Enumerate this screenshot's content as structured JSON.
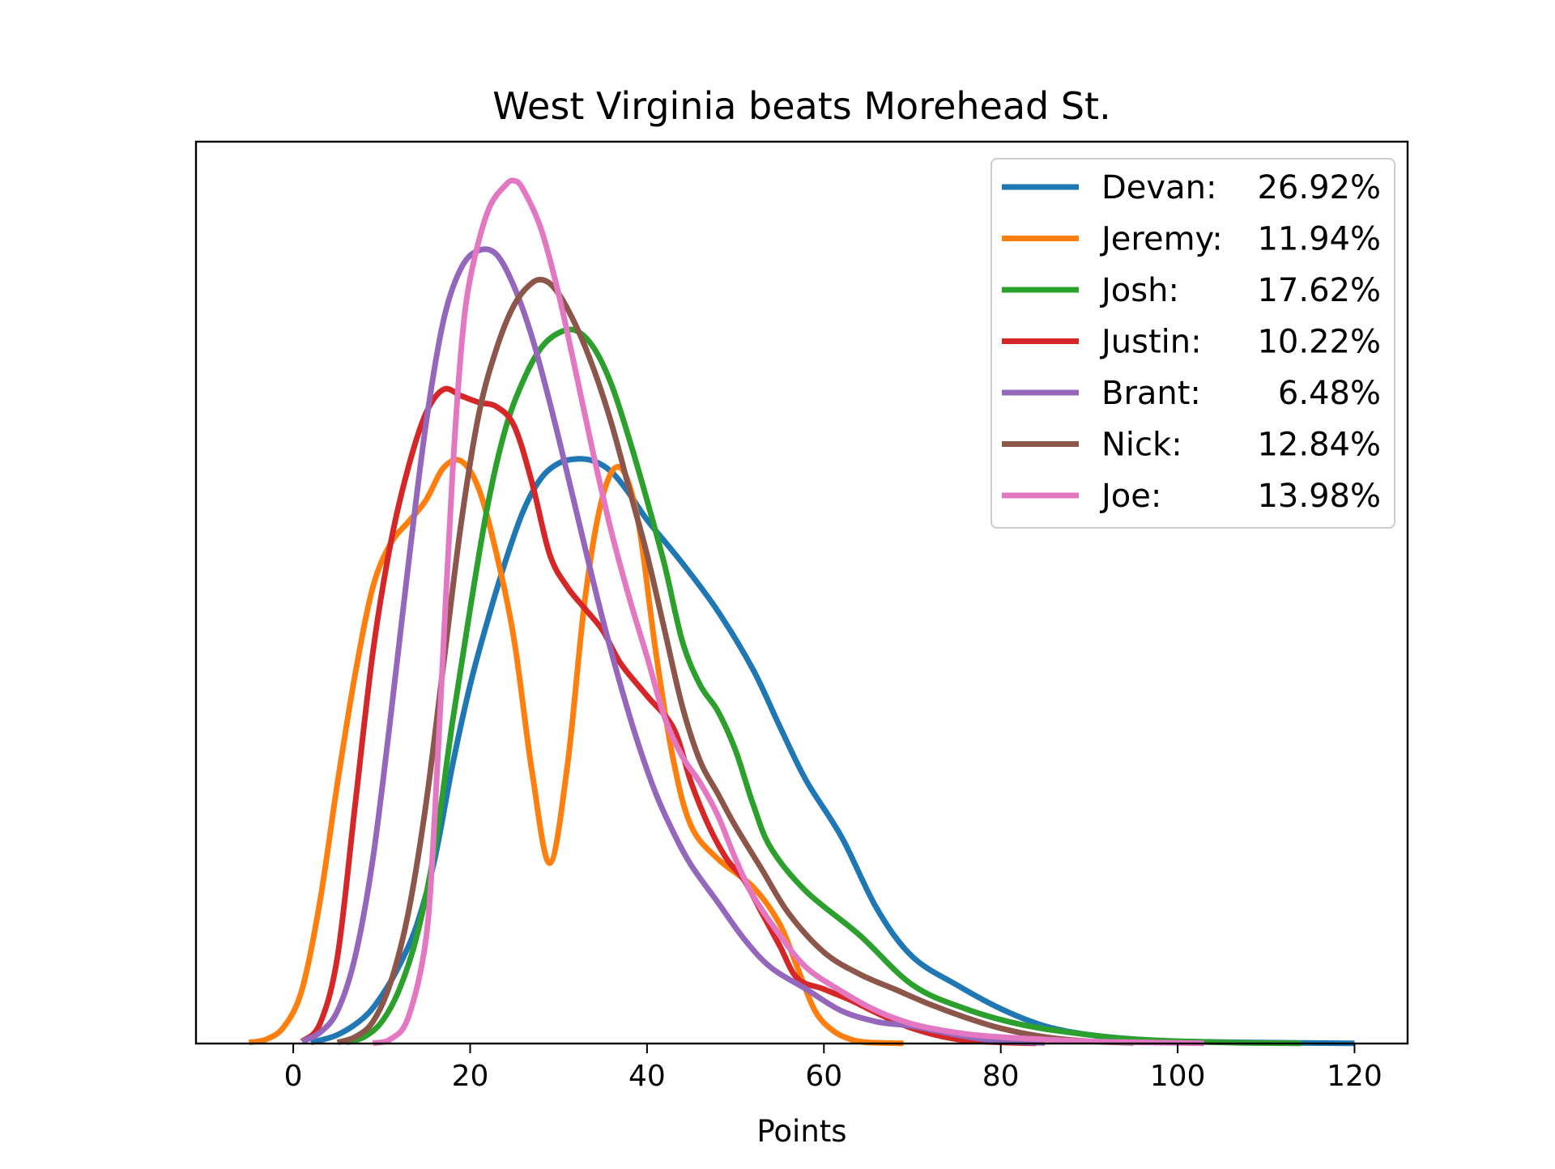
{
  "chart_data": {
    "type": "line",
    "subtype": "density",
    "title": "West Virginia beats Morehead St.",
    "xlabel": "Points",
    "ylabel": "",
    "xlim": [
      -11,
      126
    ],
    "ylim": [
      0,
      0.0415
    ],
    "x_ticks": [
      0,
      20,
      40,
      60,
      80,
      100,
      120
    ],
    "x_tick_labels": [
      "0",
      "20",
      "40",
      "60",
      "80",
      "100",
      "120"
    ],
    "y_ticks_shown": false,
    "grid": false,
    "legend_position": "upper right",
    "series": [
      {
        "name": "Devan",
        "pct": "26.92%",
        "color": "#1f77b4",
        "points": [
          [
            2,
            5e-05
          ],
          [
            5,
            0.0004
          ],
          [
            8,
            0.0012
          ],
          [
            10,
            0.0022
          ],
          [
            12,
            0.0036
          ],
          [
            14,
            0.0055
          ],
          [
            16,
            0.0085
          ],
          [
            18,
            0.0128
          ],
          [
            20,
            0.0165
          ],
          [
            22,
            0.0195
          ],
          [
            24,
            0.0222
          ],
          [
            26,
            0.0245
          ],
          [
            28,
            0.026
          ],
          [
            30,
            0.0267
          ],
          [
            32,
            0.0269
          ],
          [
            34,
            0.0268
          ],
          [
            36,
            0.0263
          ],
          [
            38,
            0.0253
          ],
          [
            40,
            0.0241
          ],
          [
            44,
            0.0221
          ],
          [
            48,
            0.0199
          ],
          [
            52,
            0.0172
          ],
          [
            55,
            0.0146
          ],
          [
            58,
            0.0121
          ],
          [
            62,
            0.0095
          ],
          [
            66,
            0.0062
          ],
          [
            70,
            0.004
          ],
          [
            75,
            0.0027
          ],
          [
            80,
            0.0016
          ],
          [
            85,
            0.0008
          ],
          [
            90,
            0.0004
          ],
          [
            95,
            0.0002
          ],
          [
            100,
            0.0001
          ],
          [
            110,
            4e-05
          ],
          [
            120,
            1e-05
          ]
        ]
      },
      {
        "name": "Jeremy",
        "pct": "11.94%",
        "color": "#ff7f0e",
        "points": [
          [
            -5,
            5e-05
          ],
          [
            -3,
            0.0002
          ],
          [
            -1,
            0.0008
          ],
          [
            1,
            0.0025
          ],
          [
            3,
            0.0065
          ],
          [
            5,
            0.012
          ],
          [
            7,
            0.017
          ],
          [
            9,
            0.021
          ],
          [
            11,
            0.023
          ],
          [
            13,
            0.024
          ],
          [
            15,
            0.025
          ],
          [
            17,
            0.0265
          ],
          [
            19,
            0.0268
          ],
          [
            21,
            0.0255
          ],
          [
            23,
            0.0225
          ],
          [
            25,
            0.0185
          ],
          [
            27,
            0.0125
          ],
          [
            29,
            0.0083
          ],
          [
            31,
            0.0128
          ],
          [
            33,
            0.0205
          ],
          [
            35,
            0.0252
          ],
          [
            37,
            0.0265
          ],
          [
            39,
            0.024
          ],
          [
            41,
            0.018
          ],
          [
            43,
            0.013
          ],
          [
            45,
            0.01
          ],
          [
            48,
            0.0085
          ],
          [
            52,
            0.0072
          ],
          [
            55,
            0.0055
          ],
          [
            57,
            0.0035
          ],
          [
            59,
            0.0015
          ],
          [
            61,
            0.0006
          ],
          [
            63,
            0.0002
          ],
          [
            65,
            5e-05
          ],
          [
            69,
            1e-05
          ]
        ]
      },
      {
        "name": "Josh",
        "pct": "17.62%",
        "color": "#2ca02c",
        "points": [
          [
            6,
            5e-05
          ],
          [
            8,
            0.0003
          ],
          [
            10,
            0.001
          ],
          [
            12,
            0.0025
          ],
          [
            14,
            0.005
          ],
          [
            16,
            0.009
          ],
          [
            18,
            0.0148
          ],
          [
            20,
            0.02
          ],
          [
            22,
            0.0248
          ],
          [
            24,
            0.0283
          ],
          [
            26,
            0.0305
          ],
          [
            28,
            0.032
          ],
          [
            30,
            0.0327
          ],
          [
            32,
            0.0328
          ],
          [
            34,
            0.032
          ],
          [
            36,
            0.0303
          ],
          [
            38,
            0.0278
          ],
          [
            40,
            0.025
          ],
          [
            42,
            0.022
          ],
          [
            44,
            0.0185
          ],
          [
            46,
            0.0165
          ],
          [
            48,
            0.0153
          ],
          [
            50,
            0.0135
          ],
          [
            52,
            0.011
          ],
          [
            54,
            0.009
          ],
          [
            58,
            0.007
          ],
          [
            64,
            0.005
          ],
          [
            70,
            0.0027
          ],
          [
            76,
            0.0016
          ],
          [
            82,
            0.0009
          ],
          [
            88,
            0.0005
          ],
          [
            95,
            0.0002
          ],
          [
            105,
            5e-05
          ],
          [
            114,
            1e-05
          ]
        ]
      },
      {
        "name": "Justin",
        "pct": "10.22%",
        "color": "#d62728",
        "points": [
          [
            1,
            0.0001
          ],
          [
            3,
            0.0009
          ],
          [
            5,
            0.004
          ],
          [
            7,
            0.011
          ],
          [
            9,
            0.018
          ],
          [
            11,
            0.023
          ],
          [
            13,
            0.0265
          ],
          [
            15,
            0.029
          ],
          [
            17,
            0.0301
          ],
          [
            19,
            0.0298
          ],
          [
            21,
            0.0295
          ],
          [
            23,
            0.0293
          ],
          [
            25,
            0.0284
          ],
          [
            27,
            0.0258
          ],
          [
            29,
            0.0225
          ],
          [
            31,
            0.021
          ],
          [
            33,
            0.02
          ],
          [
            35,
            0.019
          ],
          [
            37,
            0.0175
          ],
          [
            40,
            0.016
          ],
          [
            43,
            0.0145
          ],
          [
            45,
            0.012
          ],
          [
            47,
            0.01
          ],
          [
            49,
            0.0085
          ],
          [
            51,
            0.0075
          ],
          [
            53,
            0.006
          ],
          [
            55,
            0.0045
          ],
          [
            57,
            0.003
          ],
          [
            60,
            0.0025
          ],
          [
            63,
            0.002
          ],
          [
            66,
            0.0014
          ],
          [
            70,
            0.0007
          ],
          [
            75,
            0.0002
          ],
          [
            80,
            5e-05
          ],
          [
            84,
            1e-05
          ]
        ]
      },
      {
        "name": "Brant",
        "pct": "6.48%",
        "color": "#9467bd",
        "points": [
          [
            1,
            0.0001
          ],
          [
            3,
            0.0005
          ],
          [
            5,
            0.0015
          ],
          [
            7,
            0.004
          ],
          [
            9,
            0.0085
          ],
          [
            11,
            0.015
          ],
          [
            13,
            0.022
          ],
          [
            15,
            0.0285
          ],
          [
            17,
            0.0333
          ],
          [
            19,
            0.0357
          ],
          [
            21,
            0.0365
          ],
          [
            23,
            0.0363
          ],
          [
            25,
            0.0348
          ],
          [
            27,
            0.0325
          ],
          [
            29,
            0.0295
          ],
          [
            31,
            0.0262
          ],
          [
            33,
            0.0228
          ],
          [
            35,
            0.0195
          ],
          [
            37,
            0.0165
          ],
          [
            39,
            0.0138
          ],
          [
            41,
            0.0115
          ],
          [
            43,
            0.0097
          ],
          [
            45,
            0.0082
          ],
          [
            48,
            0.0065
          ],
          [
            51,
            0.0048
          ],
          [
            54,
            0.0035
          ],
          [
            58,
            0.0025
          ],
          [
            62,
            0.0015
          ],
          [
            66,
            0.001
          ],
          [
            70,
            0.0008
          ],
          [
            75,
            0.0004
          ],
          [
            80,
            0.0001
          ],
          [
            85,
            3e-05
          ]
        ]
      },
      {
        "name": "Nick",
        "pct": "12.84%",
        "color": "#8c564b",
        "points": [
          [
            5,
            5e-05
          ],
          [
            7,
            0.0003
          ],
          [
            9,
            0.001
          ],
          [
            11,
            0.0028
          ],
          [
            13,
            0.006
          ],
          [
            15,
            0.011
          ],
          [
            17,
            0.0175
          ],
          [
            19,
            0.024
          ],
          [
            21,
            0.029
          ],
          [
            23,
            0.032
          ],
          [
            25,
            0.034
          ],
          [
            27,
            0.035
          ],
          [
            28.5,
            0.0351
          ],
          [
            30,
            0.0345
          ],
          [
            32,
            0.033
          ],
          [
            34,
            0.031
          ],
          [
            36,
            0.0285
          ],
          [
            38,
            0.0255
          ],
          [
            40,
            0.0225
          ],
          [
            42,
            0.019
          ],
          [
            44,
            0.0155
          ],
          [
            46,
            0.013
          ],
          [
            48,
            0.0115
          ],
          [
            50,
            0.01
          ],
          [
            53,
            0.008
          ],
          [
            56,
            0.006
          ],
          [
            60,
            0.0042
          ],
          [
            64,
            0.0032
          ],
          [
            68,
            0.0025
          ],
          [
            72,
            0.0018
          ],
          [
            76,
            0.0012
          ],
          [
            80,
            0.0007
          ],
          [
            85,
            0.0003
          ],
          [
            90,
            0.0001
          ],
          [
            95,
            3e-05
          ]
        ]
      },
      {
        "name": "Joe",
        "pct": "13.98%",
        "color": "#e377c2",
        "points": [
          [
            9,
            2e-05
          ],
          [
            11,
            0.0002
          ],
          [
            13,
            0.0012
          ],
          [
            15,
            0.0048
          ],
          [
            16,
            0.0105
          ],
          [
            17,
            0.0185
          ],
          [
            18,
            0.0262
          ],
          [
            19,
            0.032
          ],
          [
            20,
            0.0352
          ],
          [
            22,
            0.0383
          ],
          [
            24,
            0.0395
          ],
          [
            25,
            0.0397
          ],
          [
            26,
            0.0393
          ],
          [
            28,
            0.0375
          ],
          [
            30,
            0.0345
          ],
          [
            32,
            0.0308
          ],
          [
            34,
            0.027
          ],
          [
            36,
            0.0235
          ],
          [
            38,
            0.0205
          ],
          [
            40,
            0.0178
          ],
          [
            42,
            0.015
          ],
          [
            44,
            0.0132
          ],
          [
            46,
            0.012
          ],
          [
            48,
            0.0105
          ],
          [
            50,
            0.0085
          ],
          [
            52,
            0.0068
          ],
          [
            55,
            0.005
          ],
          [
            58,
            0.0035
          ],
          [
            62,
            0.0024
          ],
          [
            66,
            0.0015
          ],
          [
            70,
            0.0009
          ],
          [
            75,
            0.0005
          ],
          [
            80,
            0.0003
          ],
          [
            90,
            0.0001
          ],
          [
            100,
            3e-05
          ],
          [
            103,
            1e-05
          ]
        ]
      }
    ]
  }
}
